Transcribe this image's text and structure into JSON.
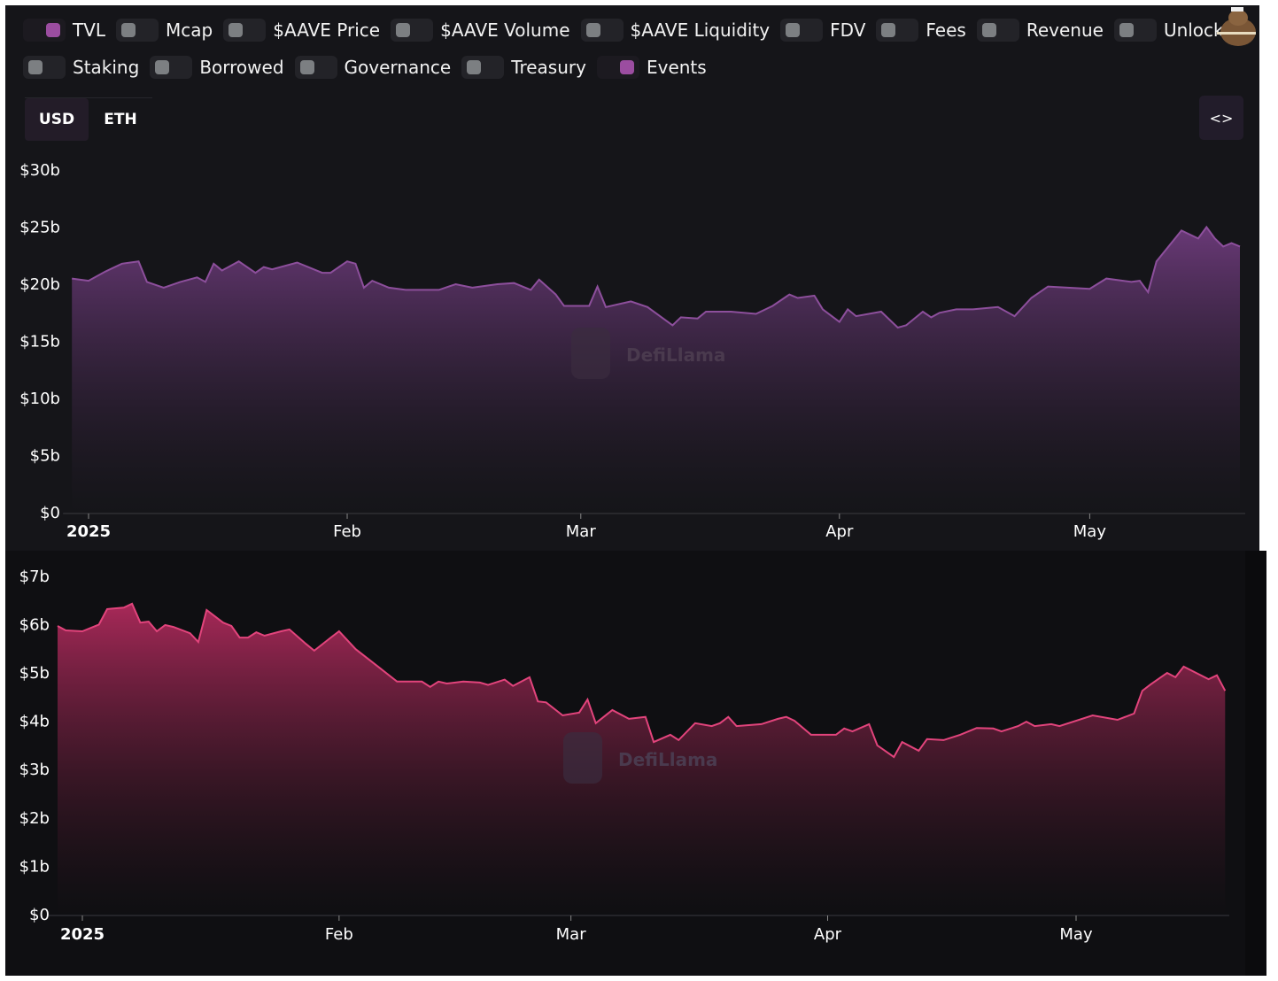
{
  "legend": {
    "items": [
      {
        "label": "TVL",
        "on": true
      },
      {
        "label": "Mcap",
        "on": false
      },
      {
        "label": "$AAVE Price",
        "on": false
      },
      {
        "label": "$AAVE Volume",
        "on": false
      },
      {
        "label": "$AAVE Liquidity",
        "on": false
      },
      {
        "label": "FDV",
        "on": false
      },
      {
        "label": "Fees",
        "on": false
      },
      {
        "label": "Revenue",
        "on": false
      },
      {
        "label": "Unlocks",
        "on": false
      },
      {
        "label": "Staking",
        "on": false
      },
      {
        "label": "Borrowed",
        "on": false
      },
      {
        "label": "Governance",
        "on": false
      },
      {
        "label": "Treasury",
        "on": false
      },
      {
        "label": "Events",
        "on": true
      }
    ]
  },
  "currency": {
    "options": [
      "USD",
      "ETH"
    ],
    "selected": "USD"
  },
  "embed_label": "<>",
  "watermark": "DefiLlama",
  "colors": {
    "tvl": "#8d4f9c",
    "borrowed": "#e2447c",
    "toggle_on": "#9b4da0"
  },
  "chart_data": [
    {
      "type": "area",
      "series": [
        {
          "name": "TVL",
          "points": [
            [
              "2024-12-30",
              20.5
            ],
            [
              "2025-01-01",
              20.3
            ],
            [
              "2025-01-03",
              21.1
            ],
            [
              "2025-01-05",
              21.8
            ],
            [
              "2025-01-07",
              22.0
            ],
            [
              "2025-01-08",
              20.2
            ],
            [
              "2025-01-10",
              19.7
            ],
            [
              "2025-01-12",
              20.2
            ],
            [
              "2025-01-14",
              20.6
            ],
            [
              "2025-01-15",
              20.2
            ],
            [
              "2025-01-16",
              21.8
            ],
            [
              "2025-01-17",
              21.2
            ],
            [
              "2025-01-19",
              22.0
            ],
            [
              "2025-01-21",
              21.0
            ],
            [
              "2025-01-22",
              21.5
            ],
            [
              "2025-01-23",
              21.3
            ],
            [
              "2025-01-26",
              21.9
            ],
            [
              "2025-01-29",
              21.0
            ],
            [
              "2025-01-30",
              21.0
            ],
            [
              "2025-02-01",
              22.0
            ],
            [
              "2025-02-02",
              21.8
            ],
            [
              "2025-02-03",
              19.7
            ],
            [
              "2025-02-04",
              20.3
            ],
            [
              "2025-02-06",
              19.7
            ],
            [
              "2025-02-08",
              19.5
            ],
            [
              "2025-02-12",
              19.5
            ],
            [
              "2025-02-14",
              20.0
            ],
            [
              "2025-02-16",
              19.7
            ],
            [
              "2025-02-19",
              20.0
            ],
            [
              "2025-02-21",
              20.1
            ],
            [
              "2025-02-23",
              19.5
            ],
            [
              "2025-02-24",
              20.4
            ],
            [
              "2025-02-26",
              19.1
            ],
            [
              "2025-02-27",
              18.1
            ],
            [
              "2025-03-02",
              18.1
            ],
            [
              "2025-03-03",
              19.8
            ],
            [
              "2025-03-04",
              18.0
            ],
            [
              "2025-03-07",
              18.5
            ],
            [
              "2025-03-09",
              18.0
            ],
            [
              "2025-03-12",
              16.4
            ],
            [
              "2025-03-13",
              17.1
            ],
            [
              "2025-03-15",
              17.0
            ],
            [
              "2025-03-16",
              17.6
            ],
            [
              "2025-03-19",
              17.6
            ],
            [
              "2025-03-22",
              17.4
            ],
            [
              "2025-03-24",
              18.1
            ],
            [
              "2025-03-26",
              19.1
            ],
            [
              "2025-03-27",
              18.8
            ],
            [
              "2025-03-29",
              19.0
            ],
            [
              "2025-03-30",
              17.8
            ],
            [
              "2025-04-01",
              16.7
            ],
            [
              "2025-04-02",
              17.8
            ],
            [
              "2025-04-03",
              17.2
            ],
            [
              "2025-04-06",
              17.6
            ],
            [
              "2025-04-08",
              16.2
            ],
            [
              "2025-04-09",
              16.4
            ],
            [
              "2025-04-11",
              17.6
            ],
            [
              "2025-04-12",
              17.1
            ],
            [
              "2025-04-13",
              17.5
            ],
            [
              "2025-04-15",
              17.8
            ],
            [
              "2025-04-17",
              17.8
            ],
            [
              "2025-04-20",
              18.0
            ],
            [
              "2025-04-22",
              17.2
            ],
            [
              "2025-04-24",
              18.8
            ],
            [
              "2025-04-26",
              19.8
            ],
            [
              "2025-05-01",
              19.6
            ],
            [
              "2025-05-03",
              20.5
            ],
            [
              "2025-05-06",
              20.2
            ],
            [
              "2025-05-07",
              20.3
            ],
            [
              "2025-05-08",
              19.3
            ],
            [
              "2025-05-09",
              22.0
            ],
            [
              "2025-05-12",
              24.7
            ],
            [
              "2025-05-14",
              24.0
            ],
            [
              "2025-05-15",
              25.0
            ],
            [
              "2025-05-16",
              24.0
            ],
            [
              "2025-05-17",
              23.3
            ],
            [
              "2025-05-18",
              23.6
            ],
            [
              "2025-05-19",
              23.3
            ]
          ]
        }
      ],
      "y_unit": "billion USD",
      "ylim": [
        0,
        30
      ],
      "yticks": [
        "$0",
        "$5b",
        "$10b",
        "$15b",
        "$20b",
        "$25b",
        "$30b"
      ],
      "yticks_values": [
        0,
        5,
        10,
        15,
        20,
        25,
        30
      ],
      "xticks": [
        {
          "date": "2025-01-01",
          "label": "2025"
        },
        {
          "date": "2025-02-01",
          "label": "Feb"
        },
        {
          "date": "2025-03-01",
          "label": "Mar"
        },
        {
          "date": "2025-04-01",
          "label": "Apr"
        },
        {
          "date": "2025-05-01",
          "label": "May"
        }
      ],
      "grid": false
    },
    {
      "type": "area",
      "series": [
        {
          "points": [
            [
              "2024-12-29",
              5.97
            ],
            [
              "2024-12-30",
              5.88
            ],
            [
              "2025-01-01",
              5.86
            ],
            [
              "2025-01-03",
              6.0
            ],
            [
              "2025-01-04",
              6.32
            ],
            [
              "2025-01-06",
              6.35
            ],
            [
              "2025-01-07",
              6.43
            ],
            [
              "2025-01-08",
              6.04
            ],
            [
              "2025-01-09",
              6.06
            ],
            [
              "2025-01-10",
              5.86
            ],
            [
              "2025-01-11",
              5.99
            ],
            [
              "2025-01-12",
              5.95
            ],
            [
              "2025-01-14",
              5.82
            ],
            [
              "2025-01-15",
              5.64
            ],
            [
              "2025-01-16",
              6.3
            ],
            [
              "2025-01-18",
              6.04
            ],
            [
              "2025-01-19",
              5.97
            ],
            [
              "2025-01-20",
              5.73
            ],
            [
              "2025-01-21",
              5.73
            ],
            [
              "2025-01-22",
              5.84
            ],
            [
              "2025-01-23",
              5.77
            ],
            [
              "2025-01-25",
              5.86
            ],
            [
              "2025-01-26",
              5.9
            ],
            [
              "2025-01-28",
              5.6
            ],
            [
              "2025-01-29",
              5.46
            ],
            [
              "2025-01-31",
              5.73
            ],
            [
              "2025-02-01",
              5.86
            ],
            [
              "2025-02-03",
              5.49
            ],
            [
              "2025-02-06",
              5.09
            ],
            [
              "2025-02-08",
              4.82
            ],
            [
              "2025-02-11",
              4.82
            ],
            [
              "2025-02-12",
              4.71
            ],
            [
              "2025-02-13",
              4.82
            ],
            [
              "2025-02-14",
              4.78
            ],
            [
              "2025-02-16",
              4.82
            ],
            [
              "2025-02-18",
              4.8
            ],
            [
              "2025-02-19",
              4.75
            ],
            [
              "2025-02-21",
              4.86
            ],
            [
              "2025-02-22",
              4.73
            ],
            [
              "2025-02-24",
              4.91
            ],
            [
              "2025-02-25",
              4.41
            ],
            [
              "2025-02-26",
              4.39
            ],
            [
              "2025-02-28",
              4.12
            ],
            [
              "2025-03-02",
              4.18
            ],
            [
              "2025-03-03",
              4.45
            ],
            [
              "2025-03-04",
              3.96
            ],
            [
              "2025-03-06",
              4.23
            ],
            [
              "2025-03-08",
              4.05
            ],
            [
              "2025-03-10",
              4.09
            ],
            [
              "2025-03-11",
              3.57
            ],
            [
              "2025-03-13",
              3.72
            ],
            [
              "2025-03-14",
              3.61
            ],
            [
              "2025-03-16",
              3.96
            ],
            [
              "2025-03-18",
              3.9
            ],
            [
              "2025-03-19",
              3.96
            ],
            [
              "2025-03-20",
              4.09
            ],
            [
              "2025-03-21",
              3.9
            ],
            [
              "2025-03-24",
              3.94
            ],
            [
              "2025-03-26",
              4.05
            ],
            [
              "2025-03-27",
              4.09
            ],
            [
              "2025-03-28",
              4.01
            ],
            [
              "2025-03-30",
              3.72
            ],
            [
              "2025-04-02",
              3.72
            ],
            [
              "2025-04-03",
              3.85
            ],
            [
              "2025-04-04",
              3.79
            ],
            [
              "2025-04-06",
              3.94
            ],
            [
              "2025-04-07",
              3.5
            ],
            [
              "2025-04-09",
              3.26
            ],
            [
              "2025-04-10",
              3.57
            ],
            [
              "2025-04-12",
              3.39
            ],
            [
              "2025-04-13",
              3.63
            ],
            [
              "2025-04-15",
              3.61
            ],
            [
              "2025-04-17",
              3.72
            ],
            [
              "2025-04-19",
              3.86
            ],
            [
              "2025-04-21",
              3.85
            ],
            [
              "2025-04-22",
              3.79
            ],
            [
              "2025-04-24",
              3.9
            ],
            [
              "2025-04-25",
              3.99
            ],
            [
              "2025-04-26",
              3.9
            ],
            [
              "2025-04-28",
              3.94
            ],
            [
              "2025-04-29",
              3.9
            ],
            [
              "2025-05-03",
              4.12
            ],
            [
              "2025-05-06",
              4.03
            ],
            [
              "2025-05-08",
              4.16
            ],
            [
              "2025-05-09",
              4.63
            ],
            [
              "2025-05-10",
              4.76
            ],
            [
              "2025-05-12",
              5.0
            ],
            [
              "2025-05-13",
              4.91
            ],
            [
              "2025-05-14",
              5.13
            ],
            [
              "2025-05-17",
              4.87
            ],
            [
              "2025-05-18",
              4.95
            ],
            [
              "2025-05-19",
              4.63
            ]
          ]
        }
      ],
      "y_unit": "billion USD",
      "ylim": [
        0,
        7
      ],
      "yticks": [
        "$0",
        "$1b",
        "$2b",
        "$3b",
        "$4b",
        "$5b",
        "$6b",
        "$7b"
      ],
      "yticks_values": [
        0,
        1,
        2,
        3,
        4,
        5,
        6,
        7
      ],
      "xticks": [
        {
          "date": "2025-01-01",
          "label": "2025"
        },
        {
          "date": "2025-02-01",
          "label": "Feb"
        },
        {
          "date": "2025-03-01",
          "label": "Mar"
        },
        {
          "date": "2025-04-01",
          "label": "Apr"
        },
        {
          "date": "2025-05-01",
          "label": "May"
        }
      ],
      "grid": false
    }
  ]
}
